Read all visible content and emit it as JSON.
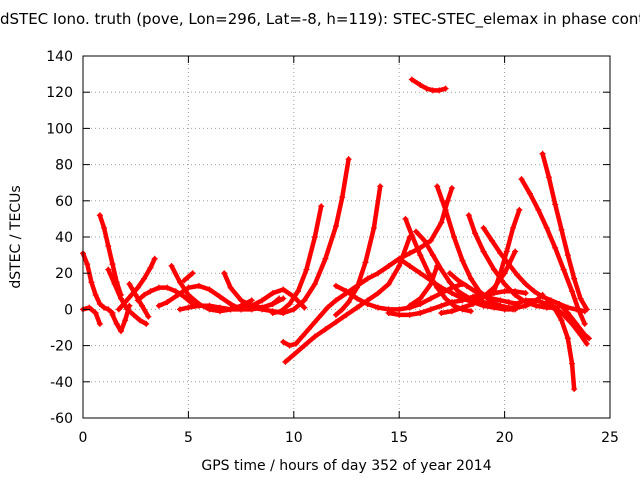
{
  "chart_data": {
    "type": "scatter",
    "title": "dSTEC Iono. truth (pove, Lon=296, Lat=-8, h=119): STEC-STEC_elemax in phase cont",
    "xlabel": "GPS time / hours of day 352 of year 2014",
    "ylabel": "dSTEC  / TECUs",
    "xlim": [
      0,
      25
    ],
    "ylim": [
      -60,
      140
    ],
    "xticks": [
      0,
      5,
      10,
      15,
      20,
      25
    ],
    "yticks": [
      -60,
      -40,
      -20,
      0,
      20,
      40,
      60,
      80,
      100,
      120,
      140
    ],
    "grid": true,
    "marker": "+",
    "color": "#ff0000",
    "series": [
      {
        "x": [
          0.0,
          0.2,
          0.4,
          0.6,
          0.8,
          1.0,
          1.2,
          1.4
        ],
        "y": [
          31,
          25,
          15,
          8,
          3,
          1,
          0,
          -2
        ]
      },
      {
        "x": [
          0.0,
          0.3,
          0.6,
          0.8
        ],
        "y": [
          0,
          1,
          -2,
          -8
        ]
      },
      {
        "x": [
          0.8,
          1.0,
          1.2,
          1.4,
          1.6,
          1.8
        ],
        "y": [
          52,
          45,
          35,
          25,
          15,
          8
        ]
      },
      {
        "x": [
          1.2,
          1.5,
          1.8,
          2.1,
          2.4,
          2.7,
          3.0
        ],
        "y": [
          22,
          14,
          6,
          0,
          -3,
          -6,
          -8
        ]
      },
      {
        "x": [
          1.4,
          1.6,
          1.8,
          2.0,
          2.2
        ],
        "y": [
          -3,
          -8,
          -12,
          -6,
          2
        ]
      },
      {
        "x": [
          1.7,
          2.0,
          2.3,
          2.6,
          2.9,
          3.2,
          3.4
        ],
        "y": [
          0,
          4,
          8,
          12,
          17,
          23,
          28
        ]
      },
      {
        "x": [
          2.2,
          2.5,
          2.8,
          3.1
        ],
        "y": [
          14,
          8,
          2,
          -4
        ]
      },
      {
        "x": [
          2.6,
          2.9,
          3.2,
          3.6,
          4.0,
          4.4,
          4.8,
          5.2
        ],
        "y": [
          5,
          8,
          10,
          12,
          12,
          10,
          7,
          3
        ]
      },
      {
        "x": [
          4.2,
          4.6,
          5.0,
          5.5,
          6.0,
          6.5,
          7.0,
          7.5,
          8.0
        ],
        "y": [
          24,
          15,
          8,
          3,
          0,
          -1,
          0,
          2,
          5
        ]
      },
      {
        "x": [
          3.6,
          4.0,
          4.5,
          5.0,
          5.5,
          6.0,
          6.5,
          7.0,
          7.5
        ],
        "y": [
          2,
          4,
          8,
          12,
          13,
          11,
          7,
          3,
          0
        ]
      },
      {
        "x": [
          4.6,
          5.0,
          5.5,
          6.0,
          6.5,
          7.0,
          7.5,
          8.0,
          8.5,
          9.0,
          9.3
        ],
        "y": [
          0,
          1,
          2,
          2,
          1,
          0,
          0,
          0,
          1,
          3,
          6
        ]
      },
      {
        "x": [
          4.8,
          5.0,
          5.2
        ],
        "y": [
          16,
          18,
          20
        ]
      },
      {
        "x": [
          6.7,
          7.0,
          7.5,
          8.0,
          8.5,
          9.0,
          9.5
        ],
        "y": [
          20,
          12,
          5,
          2,
          1,
          3,
          6
        ]
      },
      {
        "x": [
          7.5,
          8.0,
          8.5,
          9.0,
          9.5,
          10.0,
          10.5
        ],
        "y": [
          0,
          2,
          5,
          9,
          11,
          7,
          1
        ]
      },
      {
        "x": [
          8.0,
          8.5,
          9.0,
          9.5,
          10.0,
          10.5,
          11.0,
          11.5,
          12.0,
          12.3,
          12.6
        ],
        "y": [
          1,
          0,
          -1,
          -2,
          0,
          5,
          14,
          28,
          46,
          62,
          83
        ]
      },
      {
        "x": [
          9.0,
          9.4,
          9.8,
          10.2,
          10.6,
          11.0,
          11.3
        ],
        "y": [
          -2,
          -1,
          3,
          10,
          22,
          40,
          57
        ]
      },
      {
        "x": [
          9.5,
          9.8,
          10.1,
          10.4,
          10.7,
          11.0,
          11.3,
          11.6,
          12.0,
          12.5,
          13.0,
          13.5,
          14.0,
          14.5,
          15.0,
          15.5,
          16.0,
          16.5,
          17.0,
          17.3,
          17.5
        ],
        "y": [
          -18,
          -20,
          -19,
          -15,
          -11,
          -7,
          -3,
          1,
          5,
          9,
          13,
          17,
          20,
          24,
          28,
          31,
          34,
          38,
          48,
          60,
          67
        ]
      },
      {
        "x": [
          9.6,
          10.0,
          10.5,
          11.0,
          11.5,
          12.0,
          12.5,
          13.0,
          13.5,
          14.0,
          14.5,
          15.0,
          15.5
        ],
        "y": [
          -29,
          -25,
          -20,
          -15,
          -11,
          -7,
          -3,
          1,
          5,
          9,
          14,
          24,
          40
        ]
      },
      {
        "x": [
          12.0,
          12.3,
          12.6,
          13.0,
          13.4,
          13.8,
          14.1
        ],
        "y": [
          -3,
          0,
          4,
          12,
          26,
          45,
          68
        ]
      },
      {
        "x": [
          12.0,
          12.5,
          13.0,
          13.5,
          14.0,
          14.5,
          15.0,
          15.5,
          16.0,
          16.5,
          17.0,
          17.5,
          18.0
        ],
        "y": [
          13,
          10,
          6,
          3,
          1,
          0,
          0,
          1,
          3,
          6,
          9,
          12,
          14
        ]
      },
      {
        "x": [
          14.5,
          15.0,
          15.5,
          16.0,
          16.5,
          17.0,
          17.5,
          18.0,
          18.5,
          19.0,
          19.5,
          20.0,
          20.5,
          21.0
        ],
        "y": [
          -2,
          -3,
          -3,
          -2,
          0,
          2,
          4,
          5,
          7,
          8,
          9,
          10,
          10,
          9
        ]
      },
      {
        "x": [
          15.3,
          15.6,
          16.0,
          16.4,
          16.8,
          17.2,
          17.6,
          18.0,
          18.4
        ],
        "y": [
          50,
          41,
          30,
          20,
          12,
          6,
          2,
          0,
          -1
        ]
      },
      {
        "x": [
          15.5,
          16.0,
          16.5,
          16.8
        ],
        "y": [
          2,
          6,
          14,
          24
        ]
      },
      {
        "x": [
          15.6,
          16.0,
          16.3,
          16.6,
          16.9,
          17.2
        ],
        "y": [
          127,
          124,
          122,
          121,
          121,
          122
        ]
      },
      {
        "x": [
          15.8,
          16.2,
          16.6,
          17.0,
          17.4,
          17.8,
          18.2,
          18.6,
          19.0,
          19.4,
          19.8,
          20.2,
          20.6,
          21.0,
          21.4,
          21.8
        ],
        "y": [
          43,
          38,
          30,
          22,
          15,
          10,
          7,
          5,
          4,
          3,
          2,
          1,
          1,
          2,
          4,
          8
        ]
      },
      {
        "x": [
          16.8,
          17.2,
          17.6,
          18.0,
          18.4,
          18.8,
          19.2,
          19.6,
          20.0,
          20.4
        ],
        "y": [
          68,
          55,
          40,
          27,
          17,
          10,
          6,
          3,
          1,
          0
        ]
      },
      {
        "x": [
          15.0,
          15.5,
          16.0,
          16.5,
          17.0,
          17.5,
          18.0,
          18.5,
          19.0,
          19.5,
          20.0,
          20.5
        ],
        "y": [
          28,
          24,
          20,
          16,
          12,
          9,
          6,
          4,
          2,
          1,
          0,
          0
        ]
      },
      {
        "x": [
          17.4,
          17.8,
          18.2,
          18.6,
          19.0,
          19.4,
          19.8,
          20.2,
          20.6
        ],
        "y": [
          20,
          16,
          13,
          10,
          8,
          6,
          5,
          4,
          3
        ]
      },
      {
        "x": [
          17.0,
          17.5,
          18.0,
          18.5,
          19.0,
          19.5,
          20.0,
          20.5
        ],
        "y": [
          -2,
          -1,
          1,
          3,
          7,
          12,
          20,
          32
        ]
      },
      {
        "x": [
          18.3,
          18.6,
          19.0,
          19.5,
          20.0,
          20.5,
          21.0,
          21.5,
          22.0,
          22.5
        ],
        "y": [
          52,
          42,
          32,
          22,
          14,
          8,
          4,
          2,
          1,
          1
        ]
      },
      {
        "x": [
          19.5,
          19.8,
          20.1,
          20.4,
          20.7
        ],
        "y": [
          10,
          20,
          32,
          45,
          55
        ]
      },
      {
        "x": [
          19.0,
          19.4,
          19.8,
          20.2,
          20.6,
          21.0,
          21.4,
          21.8,
          22.2,
          22.6,
          23.0,
          23.4,
          23.8
        ],
        "y": [
          45,
          38,
          31,
          25,
          19,
          14,
          10,
          7,
          5,
          3,
          1,
          0,
          -1
        ]
      },
      {
        "x": [
          20.8,
          21.2,
          21.6,
          22.0,
          22.4,
          22.8,
          23.2,
          23.5,
          23.8
        ],
        "y": [
          72,
          64,
          55,
          45,
          34,
          22,
          10,
          0,
          -8
        ]
      },
      {
        "x": [
          20.5,
          21.0,
          21.5,
          22.0,
          22.4,
          22.7,
          23.0,
          23.2,
          23.3
        ],
        "y": [
          3,
          5,
          5,
          3,
          0,
          -6,
          -16,
          -30,
          -44
        ]
      },
      {
        "x": [
          21.8,
          22.1,
          22.4,
          22.7,
          23.0,
          23.3,
          23.6,
          23.9
        ],
        "y": [
          86,
          73,
          58,
          44,
          30,
          17,
          6,
          0
        ]
      },
      {
        "x": [
          22.0,
          22.4,
          22.8,
          23.2,
          23.6,
          23.9
        ],
        "y": [
          4,
          1,
          -3,
          -8,
          -14,
          -19
        ]
      },
      {
        "x": [
          22.6,
          23.0,
          23.4,
          23.8,
          24.0
        ],
        "y": [
          3,
          -2,
          -8,
          -14,
          -16
        ]
      }
    ]
  }
}
